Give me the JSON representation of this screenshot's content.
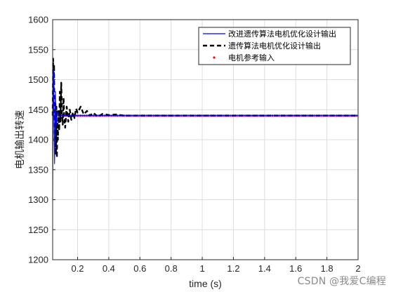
{
  "chart_data": {
    "type": "line",
    "xlabel": "time (s)",
    "ylabel": "电机输出转速",
    "xlim": [
      0.04,
      2
    ],
    "ylim": [
      1200,
      1600
    ],
    "xticks": [
      0.2,
      0.4,
      0.6,
      0.8,
      1,
      1.2,
      1.4,
      1.6,
      1.8,
      2
    ],
    "yticks": [
      1200,
      1250,
      1300,
      1350,
      1400,
      1450,
      1500,
      1550,
      1600
    ],
    "grid": true,
    "legend_position": "top-right",
    "series": [
      {
        "name": "改进遗传算法电机优化设计输出",
        "color": "#0000ff",
        "style": "solid",
        "x": [
          0.04,
          0.042,
          0.044,
          0.046,
          0.048,
          0.05,
          0.052,
          0.054,
          0.056,
          0.058,
          0.06,
          0.063,
          0.066,
          0.07,
          0.075,
          0.08,
          0.09,
          0.1,
          0.12,
          2.0
        ],
        "y": [
          1300,
          1400,
          1500,
          1515,
          1470,
          1400,
          1360,
          1395,
          1455,
          1480,
          1450,
          1425,
          1435,
          1448,
          1444,
          1438,
          1441,
          1440,
          1440,
          1440
        ]
      },
      {
        "name": "遗传算法电机优化设计输出",
        "color": "#000000",
        "style": "dashed",
        "x": [
          0.04,
          0.043,
          0.046,
          0.049,
          0.052,
          0.055,
          0.058,
          0.061,
          0.064,
          0.067,
          0.07,
          0.074,
          0.078,
          0.082,
          0.086,
          0.09,
          0.095,
          0.1,
          0.105,
          0.11,
          0.115,
          0.12,
          0.13,
          0.14,
          0.15,
          0.16,
          0.17,
          0.18,
          0.19,
          0.2,
          0.22,
          0.24,
          0.26,
          0.28,
          0.3,
          0.33,
          0.36,
          0.4,
          0.45,
          0.5,
          2.0
        ],
        "y": [
          1440,
          1535,
          1480,
          1525,
          1395,
          1410,
          1460,
          1375,
          1455,
          1370,
          1430,
          1400,
          1450,
          1415,
          1480,
          1430,
          1495,
          1440,
          1425,
          1470,
          1435,
          1420,
          1455,
          1430,
          1450,
          1433,
          1446,
          1436,
          1452,
          1445,
          1455,
          1442,
          1448,
          1440,
          1445,
          1438,
          1443,
          1441,
          1442,
          1440,
          1440
        ]
      },
      {
        "name": "电机参考输入",
        "color": "#ff0000",
        "style": "dots",
        "x": [
          0.04,
          2.0
        ],
        "y": [
          1440,
          1440
        ]
      }
    ]
  },
  "watermark": "CSDN @我爱C编程"
}
